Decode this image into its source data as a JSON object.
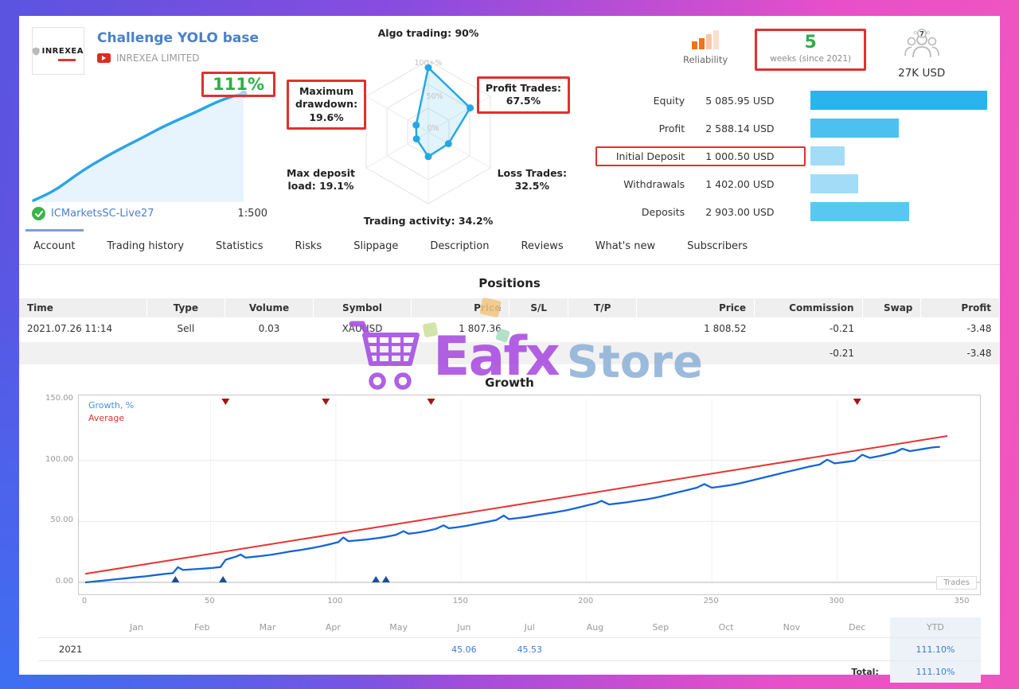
{
  "colors": {
    "accent_blue": "#4a80c8",
    "growth_green": "#2fae4a",
    "alert_red_box": "#e23030",
    "negative_red": "#cc2b2b",
    "radar_blue": "#25a8e2",
    "growth_line_blue": "#1565d8",
    "average_line_red": "#e53434",
    "month_value_blue": "#3a7bd5",
    "watermark_purple": "#a94ce0",
    "watermark_blue": "#8fb2d8"
  },
  "header": {
    "logo_text": "INREXEA",
    "title": "Challenge YOLO base",
    "author": "INREXEA LIMITED",
    "growth_pct": "111%",
    "account": "ICMarketsSC-Live27",
    "leverage": "1:500"
  },
  "radar": {
    "rings": [
      "100+%",
      "50%",
      "0%"
    ],
    "metrics": [
      {
        "key": "algo-trading",
        "label": "Algo trading: 90%",
        "value": 90,
        "boxed": false
      },
      {
        "key": "profit-trades",
        "label": "Profit Trades:\n67.5%",
        "value": 67.5,
        "boxed": true
      },
      {
        "key": "loss-trades",
        "label": "Loss Trades:\n32.5%",
        "value": 32.5,
        "boxed": false
      },
      {
        "key": "trading-activity",
        "label": "Trading activity: 34.2%",
        "value": 34.2,
        "boxed": false
      },
      {
        "key": "max-deposit-load",
        "label": "Max deposit\nload: 19.1%",
        "value": 19.1,
        "boxed": false
      },
      {
        "key": "maximum-drawdown",
        "label": "Maximum\ndrawdown:\n19.6%",
        "value": 19.6,
        "boxed": true
      }
    ]
  },
  "summary": {
    "reliability_label": "Reliability",
    "weeks_value": "5",
    "weeks_label": "weeks (since 2021)",
    "subscribers_badge": "7",
    "funds": "27K USD",
    "rows": [
      {
        "label": "Equity",
        "value": "5 085.95 USD",
        "pct": 100,
        "color": "#29b5ec",
        "boxed": false
      },
      {
        "label": "Profit",
        "value": "2 588.14 USD",
        "pct": 50,
        "color": "#4cc1f0",
        "boxed": false
      },
      {
        "label": "Initial Deposit",
        "value": "1 000.50 USD",
        "pct": 19.5,
        "color": "#a3dcf7",
        "boxed": true
      },
      {
        "label": "Withdrawals",
        "value": "1 402.00 USD",
        "pct": 27,
        "color": "#a3dcf7",
        "boxed": false
      },
      {
        "label": "Deposits",
        "value": "2 903.00 USD",
        "pct": 56,
        "color": "#58c8f2",
        "boxed": false
      }
    ]
  },
  "tabs": [
    {
      "label": "Account",
      "active": true
    },
    {
      "label": "Trading history",
      "active": false
    },
    {
      "label": "Statistics",
      "active": false
    },
    {
      "label": "Risks",
      "active": false
    },
    {
      "label": "Slippage",
      "active": false
    },
    {
      "label": "Description",
      "active": false
    },
    {
      "label": "Reviews",
      "active": false
    },
    {
      "label": "What's new",
      "active": false
    },
    {
      "label": "Subscribers",
      "active": false
    }
  ],
  "positions": {
    "title": "Positions",
    "columns": [
      "Time",
      "Type",
      "Volume",
      "Symbol",
      "Price",
      "S/L",
      "T/P",
      "Price",
      "Commission",
      "Swap",
      "Profit"
    ],
    "rows": [
      [
        "2021.07.26 11:14",
        "Sell",
        "0.03",
        "XAUUSD",
        "1 807.36",
        "",
        "",
        "1 808.52",
        "-0.21",
        "",
        "-3.48"
      ]
    ],
    "totals": [
      "",
      "",
      "",
      "",
      "",
      "",
      "",
      "",
      "-0.21",
      "",
      "-3.48"
    ]
  },
  "watermark": {
    "brand_first": "Eafx",
    "brand_second": "Store"
  },
  "chart_data": {
    "type": "line",
    "title": "Growth",
    "xlabel": "Trades",
    "ylabel": "",
    "xlim": [
      0,
      350
    ],
    "ylim": [
      0,
      150
    ],
    "x_ticks": [
      0,
      50,
      100,
      150,
      200,
      250,
      300,
      350
    ],
    "y_ticks": [
      "0.00",
      "50.00",
      "100.00",
      "150.00"
    ],
    "grid": true,
    "legend_position": "top-left",
    "series": [
      {
        "name": "Growth, %",
        "color": "#1565d8",
        "points": [
          [
            0,
            0
          ],
          [
            4,
            0.8
          ],
          [
            8,
            1.6
          ],
          [
            12,
            2.5
          ],
          [
            16,
            3.3
          ],
          [
            20,
            4.2
          ],
          [
            24,
            5
          ],
          [
            28,
            6
          ],
          [
            32,
            7
          ],
          [
            35,
            7.6
          ],
          [
            37,
            12.5
          ],
          [
            39,
            10.2
          ],
          [
            42,
            10.6
          ],
          [
            45,
            11
          ],
          [
            48,
            11.4
          ],
          [
            51,
            11.9
          ],
          [
            54,
            12.6
          ],
          [
            56,
            18.5
          ],
          [
            58,
            19.8
          ],
          [
            60,
            21
          ],
          [
            62,
            22.8
          ],
          [
            64,
            20.3
          ],
          [
            67,
            20.9
          ],
          [
            70,
            21.6
          ],
          [
            74,
            22.6
          ],
          [
            78,
            24
          ],
          [
            82,
            25.4
          ],
          [
            86,
            26.6
          ],
          [
            90,
            28
          ],
          [
            94,
            29.6
          ],
          [
            98,
            31.5
          ],
          [
            101,
            33
          ],
          [
            103,
            36.8
          ],
          [
            105,
            33.8
          ],
          [
            108,
            34.3
          ],
          [
            112,
            35.1
          ],
          [
            116,
            36.1
          ],
          [
            120,
            37.3
          ],
          [
            124,
            39
          ],
          [
            127,
            42
          ],
          [
            129,
            39.9
          ],
          [
            132,
            40.6
          ],
          [
            136,
            42
          ],
          [
            140,
            43.9
          ],
          [
            143,
            46.8
          ],
          [
            145,
            44.4
          ],
          [
            148,
            45.1
          ],
          [
            152,
            46.3
          ],
          [
            156,
            47.9
          ],
          [
            160,
            49.5
          ],
          [
            164,
            51.1
          ],
          [
            167,
            54.8
          ],
          [
            169,
            51.9
          ],
          [
            172,
            52.6
          ],
          [
            176,
            53.6
          ],
          [
            180,
            55
          ],
          [
            184,
            56.3
          ],
          [
            188,
            57.6
          ],
          [
            192,
            59.1
          ],
          [
            196,
            61
          ],
          [
            200,
            63
          ],
          [
            204,
            65
          ],
          [
            206,
            66.8
          ],
          [
            209,
            63.9
          ],
          [
            212,
            64.6
          ],
          [
            216,
            65.6
          ],
          [
            220,
            66.9
          ],
          [
            224,
            68.1
          ],
          [
            228,
            69.6
          ],
          [
            232,
            71.6
          ],
          [
            236,
            73.6
          ],
          [
            240,
            75.6
          ],
          [
            244,
            77.6
          ],
          [
            247,
            80.6
          ],
          [
            250,
            77.6
          ],
          [
            253,
            78.4
          ],
          [
            257,
            79.6
          ],
          [
            261,
            81.1
          ],
          [
            265,
            83.1
          ],
          [
            269,
            85.1
          ],
          [
            273,
            87.1
          ],
          [
            277,
            89.1
          ],
          [
            281,
            91.1
          ],
          [
            285,
            93
          ],
          [
            289,
            95
          ],
          [
            293,
            96.6
          ],
          [
            296,
            100.6
          ],
          [
            299,
            97.6
          ],
          [
            303,
            98.6
          ],
          [
            307,
            99.7
          ],
          [
            310,
            104.6
          ],
          [
            313,
            102.1
          ],
          [
            317,
            103.6
          ],
          [
            320,
            105.1
          ],
          [
            323,
            106.6
          ],
          [
            326,
            109.6
          ],
          [
            329,
            107.6
          ],
          [
            332,
            108.6
          ],
          [
            335,
            109.6
          ],
          [
            338,
            110.6
          ],
          [
            341,
            111.1
          ]
        ]
      },
      {
        "name": "Average",
        "color": "#e53434",
        "points": [
          [
            0,
            7
          ],
          [
            344,
            120
          ]
        ]
      }
    ],
    "event_markers": {
      "top_red": [
        56,
        96,
        138,
        308
      ],
      "bottom_blue": [
        36,
        55,
        116,
        120
      ]
    }
  },
  "monthly": {
    "year": "2021",
    "columns": [
      "Jan",
      "Feb",
      "Mar",
      "Apr",
      "May",
      "Jun",
      "Jul",
      "Aug",
      "Sep",
      "Oct",
      "Nov",
      "Dec",
      "YTD"
    ],
    "values": [
      "",
      "",
      "",
      "",
      "",
      "45.06",
      "45.53",
      "",
      "",
      "",
      "",
      "",
      "111.10%"
    ],
    "total_label": "Total:",
    "total_value": "111.10%"
  }
}
